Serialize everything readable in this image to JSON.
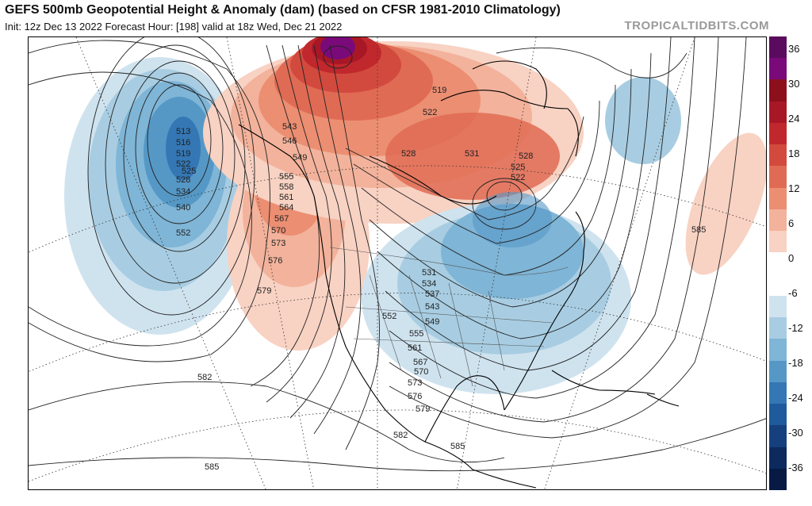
{
  "header": {
    "title": "GEFS 500mb Geopotential Height & Anomaly (dam) (based on CFSR 1981-2010 Climatology)",
    "subtitle": "Init: 12z Dec 13 2022   Forecast Hour: [198]   valid at 18z Wed, Dec 21 2022",
    "brand": "TROPICALTIDBITS.COM"
  },
  "colorbar": {
    "ticks": [
      "36",
      "30",
      "24",
      "18",
      "12",
      "6",
      "0",
      "-6",
      "-12",
      "-18",
      "-24",
      "-30",
      "-36"
    ],
    "colors": [
      "#5b0b5e",
      "#7a0a7a",
      "#8c0f1c",
      "#a81726",
      "#c0282d",
      "#d24a3e",
      "#e06b54",
      "#eb8e72",
      "#f3b29b",
      "#f8d2c3",
      "#ffffff",
      "#ffffff",
      "#cfe3ef",
      "#a8cde2",
      "#7fb5d6",
      "#5598c6",
      "#3477b4",
      "#1f5a9c",
      "#163f7e",
      "#0c2a5e",
      "#061a44"
    ]
  },
  "contour_labels": [
    {
      "text": "513"
    },
    {
      "text": "516"
    },
    {
      "text": "519"
    },
    {
      "text": "522"
    },
    {
      "text": "525"
    },
    {
      "text": "528"
    },
    {
      "text": "534"
    },
    {
      "text": "540"
    },
    {
      "text": "552"
    },
    {
      "text": "543"
    },
    {
      "text": "546"
    },
    {
      "text": "549"
    },
    {
      "text": "555"
    },
    {
      "text": "558"
    },
    {
      "text": "561"
    },
    {
      "text": "564"
    },
    {
      "text": "567"
    },
    {
      "text": "570"
    },
    {
      "text": "573"
    },
    {
      "text": "576"
    },
    {
      "text": "579"
    },
    {
      "text": "519"
    },
    {
      "text": "522"
    },
    {
      "text": "528"
    },
    {
      "text": "531"
    },
    {
      "text": "528"
    },
    {
      "text": "525"
    },
    {
      "text": "522"
    },
    {
      "text": "531"
    },
    {
      "text": "534"
    },
    {
      "text": "537"
    },
    {
      "text": "543"
    },
    {
      "text": "549"
    },
    {
      "text": "552"
    },
    {
      "text": "555"
    },
    {
      "text": "561"
    },
    {
      "text": "567"
    },
    {
      "text": "570"
    },
    {
      "text": "573"
    },
    {
      "text": "576"
    },
    {
      "text": "579"
    },
    {
      "text": "582"
    },
    {
      "text": "582"
    },
    {
      "text": "585"
    },
    {
      "text": "585"
    },
    {
      "text": "585"
    }
  ]
}
